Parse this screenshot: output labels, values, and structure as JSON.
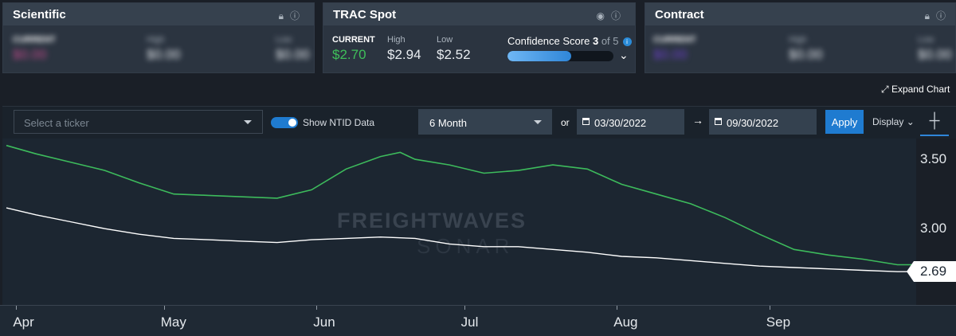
{
  "cards": [
    {
      "title": "Scientific",
      "icons": [
        "lock-icon",
        "info-icon"
      ],
      "current_label": "CURRENT",
      "current_value": "$0.00",
      "high_label": "High",
      "high_value": "$0.00",
      "low_label": "Low",
      "low_value": "$0.00"
    },
    {
      "title": "TRAC Spot",
      "icons": [
        "eye-icon",
        "info-icon"
      ],
      "current_label": "CURRENT",
      "current_value": "$2.70",
      "high_label": "High",
      "high_value": "$2.94",
      "low_label": "Low",
      "low_value": "$2.52",
      "confidence_label": "Confidence Score",
      "confidence_value": "3",
      "confidence_of": "of 5",
      "confidence_fraction": 0.6
    },
    {
      "title": "Contract",
      "icons": [
        "lock-icon",
        "info-icon"
      ],
      "current_label": "CURRENT",
      "current_value": "$0.00",
      "high_label": "High",
      "high_value": "$0.00",
      "low_label": "Low",
      "low_value": "$0.00"
    }
  ],
  "expand_label": "Expand Chart",
  "toolbar": {
    "ticker_placeholder": "Select a ticker",
    "ntid_label": "Show NTID Data",
    "ntid_on": true,
    "period": "6 Month",
    "or_label": "or",
    "start_date": "03/30/2022",
    "end_date": "09/30/2022",
    "apply_label": "Apply",
    "display_label": "Display"
  },
  "colors": {
    "current": "#3fbf5a",
    "current_locked": "#c04a8a",
    "current_locked_contract": "#6a3fc8",
    "series_green": "#3dbb5c",
    "series_white": "#ffffff",
    "accent": "#1f7bd0"
  },
  "watermark": {
    "brand": "FREIGHTWAVES",
    "product": "SONAR"
  },
  "chart_data": {
    "type": "line",
    "x_ticks": [
      "Apr",
      "May",
      "Jun",
      "Jul",
      "Aug",
      "Sep"
    ],
    "y_ticks": [
      "3.50",
      "3.00"
    ],
    "ylim": [
      2.45,
      3.65
    ],
    "x_range": [
      "2022-03-30",
      "2022-09-30"
    ],
    "last_value_label": "2.69",
    "series": [
      {
        "color": "#3dbb5c",
        "x": [
          "2022-03-30",
          "2022-04-05",
          "2022-04-12",
          "2022-04-19",
          "2022-04-26",
          "2022-05-03",
          "2022-05-10",
          "2022-05-17",
          "2022-05-24",
          "2022-05-31",
          "2022-06-07",
          "2022-06-14",
          "2022-06-18",
          "2022-06-21",
          "2022-06-28",
          "2022-07-05",
          "2022-07-12",
          "2022-07-19",
          "2022-07-26",
          "2022-08-02",
          "2022-08-09",
          "2022-08-16",
          "2022-08-23",
          "2022-08-30",
          "2022-09-06",
          "2022-09-13",
          "2022-09-20",
          "2022-09-27",
          "2022-09-30"
        ],
        "y": [
          3.6,
          3.54,
          3.48,
          3.42,
          3.33,
          3.25,
          3.24,
          3.23,
          3.22,
          3.28,
          3.43,
          3.52,
          3.55,
          3.5,
          3.46,
          3.4,
          3.42,
          3.46,
          3.43,
          3.32,
          3.25,
          3.18,
          3.08,
          2.96,
          2.85,
          2.81,
          2.78,
          2.74,
          2.74
        ]
      },
      {
        "color": "#ffffff",
        "x": [
          "2022-03-30",
          "2022-04-05",
          "2022-04-12",
          "2022-04-19",
          "2022-04-26",
          "2022-05-03",
          "2022-05-10",
          "2022-05-17",
          "2022-05-24",
          "2022-05-31",
          "2022-06-07",
          "2022-06-14",
          "2022-06-21",
          "2022-06-28",
          "2022-07-05",
          "2022-07-12",
          "2022-07-19",
          "2022-07-26",
          "2022-08-02",
          "2022-08-09",
          "2022-08-16",
          "2022-08-23",
          "2022-08-30",
          "2022-09-06",
          "2022-09-13",
          "2022-09-20",
          "2022-09-27",
          "2022-09-30"
        ],
        "y": [
          3.15,
          3.1,
          3.05,
          3.0,
          2.96,
          2.93,
          2.92,
          2.91,
          2.9,
          2.92,
          2.93,
          2.94,
          2.93,
          2.89,
          2.87,
          2.87,
          2.85,
          2.83,
          2.8,
          2.79,
          2.77,
          2.75,
          2.73,
          2.72,
          2.71,
          2.7,
          2.69,
          2.69
        ]
      }
    ]
  }
}
